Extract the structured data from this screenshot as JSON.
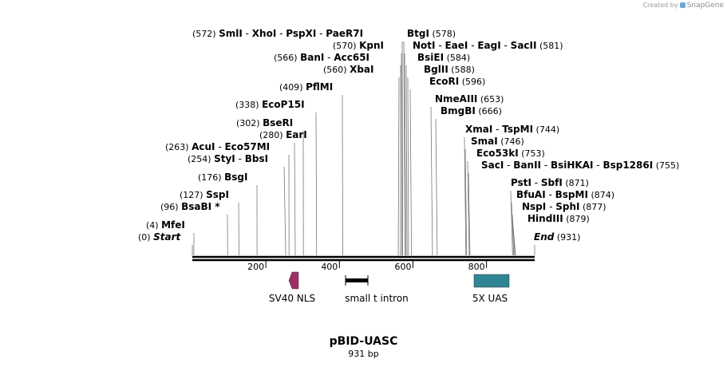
{
  "credit": {
    "prefix": "Created by",
    "brand": "SnapGene"
  },
  "map": {
    "title": "pBID-UASC",
    "length_label": "931 bp",
    "total_bp": 931,
    "axis_ticks": [
      "200",
      "400",
      "600",
      "800"
    ],
    "labels": [
      {
        "pos": "(0)",
        "names": [
          "Start"
        ],
        "italic": true
      },
      {
        "pos": "(4)",
        "names": [
          "MfeI"
        ]
      },
      {
        "pos": "(96)",
        "names": [
          "BsaBI *"
        ]
      },
      {
        "pos": "(127)",
        "names": [
          "SspI"
        ]
      },
      {
        "pos": "(176)",
        "names": [
          "BsgI"
        ]
      },
      {
        "pos": "(254)",
        "names": [
          "StyI",
          "BbsI"
        ]
      },
      {
        "pos": "(263)",
        "names": [
          "AcuI",
          "Eco57MI"
        ]
      },
      {
        "pos": "(280)",
        "names": [
          "EarI"
        ]
      },
      {
        "pos": "(302)",
        "names": [
          "BseRI"
        ]
      },
      {
        "pos": "(338)",
        "names": [
          "EcoP15I"
        ]
      },
      {
        "pos": "(409)",
        "names": [
          "PflMI"
        ]
      },
      {
        "pos": "(560)",
        "names": [
          "XbaI"
        ]
      },
      {
        "pos": "(566)",
        "names": [
          "BanI",
          "Acc65I"
        ]
      },
      {
        "pos": "(570)",
        "names": [
          "KpnI"
        ]
      },
      {
        "pos": "(572)",
        "names": [
          "SmlI",
          "XhoI",
          "PspXI",
          "PaeR7I"
        ]
      },
      {
        "pos": "(578)",
        "names": [
          "BtgI"
        ]
      },
      {
        "pos": "(581)",
        "names": [
          "NotI",
          "EaeI",
          "EagI",
          "SacII"
        ]
      },
      {
        "pos": "(584)",
        "names": [
          "BsiEI"
        ]
      },
      {
        "pos": "(588)",
        "names": [
          "BglII"
        ]
      },
      {
        "pos": "(596)",
        "names": [
          "EcoRI"
        ]
      },
      {
        "pos": "(653)",
        "names": [
          "NmeAIII"
        ]
      },
      {
        "pos": "(666)",
        "names": [
          "BmgBI"
        ]
      },
      {
        "pos": "(744)",
        "names": [
          "XmaI",
          "TspMI"
        ]
      },
      {
        "pos": "(746)",
        "names": [
          "SmaI"
        ]
      },
      {
        "pos": "(753)",
        "names": [
          "Eco53kI"
        ]
      },
      {
        "pos": "(755)",
        "names": [
          "SacI",
          "BanII",
          "BsiHKAI",
          "Bsp1286I"
        ]
      },
      {
        "pos": "(871)",
        "names": [
          "PstI",
          "SbfI"
        ]
      },
      {
        "pos": "(874)",
        "names": [
          "BfuAI",
          "BspMI"
        ]
      },
      {
        "pos": "(877)",
        "names": [
          "NspI",
          "SphI"
        ]
      },
      {
        "pos": "(879)",
        "names": [
          "HindIII"
        ]
      },
      {
        "pos": "(931)",
        "names": [
          "End"
        ],
        "italic": true
      }
    ],
    "features": [
      {
        "name": "SV40 NLS",
        "color": "#9e2f66"
      },
      {
        "name": "small t intron",
        "color": "#000000"
      },
      {
        "name": "5X UAS",
        "color": "#2f8596"
      }
    ]
  }
}
